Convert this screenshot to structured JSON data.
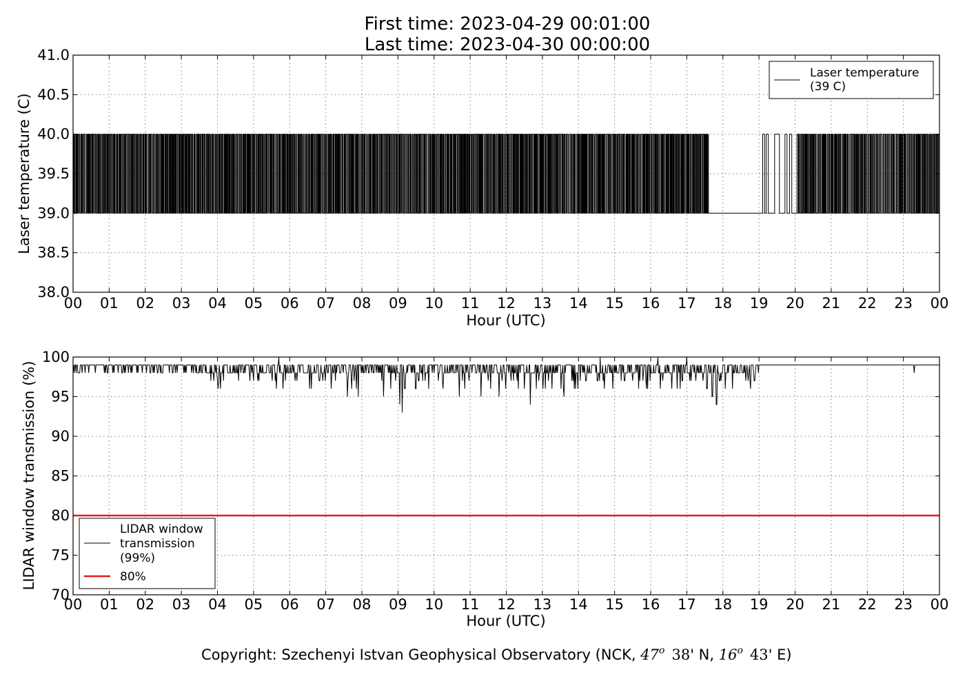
{
  "header": {
    "first_time": "First time: 2023-04-29 00:01:00",
    "last_time": "Last time: 2023-04-30 00:00:00"
  },
  "footer": {
    "copyright_prefix": "Copyright: Szechenyi Istvan Geophysical Observatory (NCK, ",
    "lat_deg": "47",
    "lat_min": "38",
    "lat_hem": "N",
    "lon_deg": "16",
    "lon_min": "43",
    "lon_hem": "E",
    "deg_symbol": "o"
  },
  "colors": {
    "series_line": "#000000",
    "threshold_line": "#e41a1c",
    "grid": "#808080"
  },
  "chart_data": [
    {
      "type": "line",
      "xlabel": "Hour (UTC)",
      "ylabel": "Laser temperature (C)",
      "xlim": [
        0,
        24
      ],
      "ylim": [
        38.0,
        41.0
      ],
      "x_ticks": [
        "00",
        "01",
        "02",
        "03",
        "04",
        "05",
        "06",
        "07",
        "08",
        "09",
        "10",
        "11",
        "12",
        "13",
        "14",
        "15",
        "16",
        "17",
        "18",
        "19",
        "20",
        "21",
        "22",
        "23",
        "00"
      ],
      "y_ticks": [
        "38.0",
        "38.5",
        "39.0",
        "39.5",
        "40.0",
        "40.5",
        "41.0"
      ],
      "grid": true,
      "legend_position": "upper-right",
      "series": [
        {
          "name": "Laser temperature",
          "legend_lines": [
            "Laser temperature",
            "(39 C)"
          ],
          "levels": [
            39.0,
            40.0
          ],
          "note_shape": "rapid toggling between 39.0 and 40.0 C all day",
          "segments": [
            {
              "start": 0.0,
              "end": 17.6,
              "switch_rate_per_hour": 60
            },
            {
              "start": 17.6,
              "end": 19.05,
              "level": 39.0
            },
            {
              "start": 19.05,
              "end": 20.05,
              "switch_rate_per_hour": 10
            },
            {
              "start": 20.05,
              "end": 24.0,
              "switch_rate_per_hour": 55
            }
          ]
        }
      ]
    },
    {
      "type": "line",
      "xlabel": "Hour (UTC)",
      "ylabel": "LIDAR window transmission (%)",
      "xlim": [
        0,
        24
      ],
      "ylim": [
        70,
        100
      ],
      "x_ticks": [
        "00",
        "01",
        "02",
        "03",
        "04",
        "05",
        "06",
        "07",
        "08",
        "09",
        "10",
        "11",
        "12",
        "13",
        "14",
        "15",
        "16",
        "17",
        "18",
        "19",
        "20",
        "21",
        "22",
        "23",
        "00"
      ],
      "y_ticks": [
        "70",
        "75",
        "80",
        "85",
        "90",
        "95",
        "100"
      ],
      "grid": true,
      "legend_position": "lower-left",
      "series": [
        {
          "name": "LIDAR window transmission",
          "legend_lines": [
            "LIDAR window",
            "transmission",
            "(99%)"
          ],
          "baseline": 99,
          "spikes": [
            {
              "x": 0.15,
              "y": 98
            },
            {
              "x": 1.45,
              "y": 98
            },
            {
              "x": 4.9,
              "y": 97
            },
            {
              "x": 5.7,
              "y": 100
            },
            {
              "x": 6.2,
              "y": 97
            },
            {
              "x": 6.6,
              "y": 96
            },
            {
              "x": 7.6,
              "y": 95
            },
            {
              "x": 7.9,
              "y": 95
            },
            {
              "x": 8.6,
              "y": 95
            },
            {
              "x": 9.05,
              "y": 94
            },
            {
              "x": 9.12,
              "y": 93
            },
            {
              "x": 9.5,
              "y": 96
            },
            {
              "x": 10.7,
              "y": 95
            },
            {
              "x": 11.3,
              "y": 95
            },
            {
              "x": 11.8,
              "y": 95
            },
            {
              "x": 12.67,
              "y": 94
            },
            {
              "x": 13.6,
              "y": 95
            },
            {
              "x": 14.95,
              "y": 96
            },
            {
              "x": 14.6,
              "y": 100
            },
            {
              "x": 16.2,
              "y": 100
            },
            {
              "x": 17.0,
              "y": 100
            },
            {
              "x": 17.55,
              "y": 96
            },
            {
              "x": 17.7,
              "y": 95
            },
            {
              "x": 17.82,
              "y": 94
            },
            {
              "x": 17.9,
              "y": 97
            },
            {
              "x": 23.3,
              "y": 98
            }
          ],
          "noisy_ranges": [
            {
              "start": 0.0,
              "end": 19.0,
              "min": 96,
              "max": 100
            }
          ],
          "flat_after": 19.0
        },
        {
          "name": "80%",
          "legend_lines": [
            "80%"
          ],
          "constant": 80
        }
      ]
    }
  ]
}
